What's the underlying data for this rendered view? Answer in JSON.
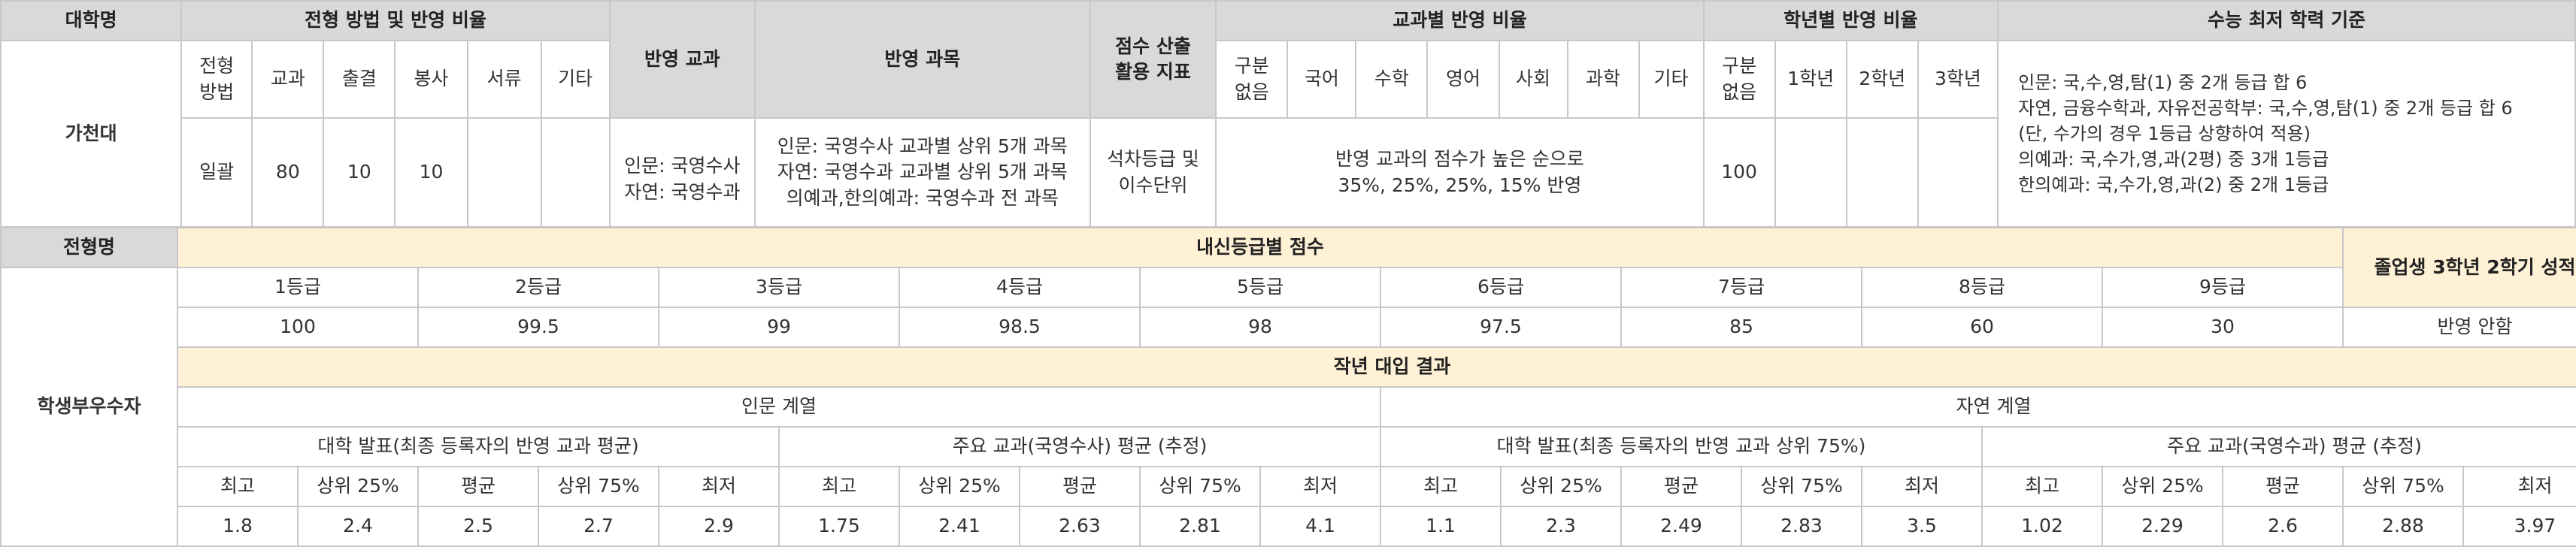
{
  "top": {
    "headers": {
      "univ": "대학명",
      "method_ratio": "전형 방법 및 반영 비율",
      "subject": "반영 교과",
      "course": "반영 과목",
      "score_index": "점수 산출\n활용 지표",
      "subject_ratio": "교과별 반영 비율",
      "grade_ratio": "학년별 반영 비율",
      "csat_min": "수능 최저 학력 기준"
    },
    "sub_headers": {
      "method": "전형\n방법",
      "gyogwa": "교과",
      "attendance": "출결",
      "volunteer": "봉사",
      "documents": "서류",
      "etc": "기타",
      "no_div": "구분\n없음",
      "korean": "국어",
      "math": "수학",
      "english": "영어",
      "social": "사회",
      "science": "과학",
      "etc2": "기타",
      "no_div2": "구분\n없음",
      "y1": "1학년",
      "y2": "2학년",
      "y3": "3학년"
    },
    "values": {
      "univ": "가천대",
      "method": "일괄",
      "gyogwa": "80",
      "attendance": "10",
      "volunteer": "10",
      "documents": "",
      "etc": "",
      "subject": "인문: 국영수사\n자연: 국영수과",
      "course": "인문: 국영수사 교과별 상위 5개 과목\n자연: 국영수과 교과별 상위 5개 과목\n의예과,한의예과: 국영수과 전 과목",
      "score_index": "석차등급 및\n이수단위",
      "subject_ratio_text": "반영 교과의 점수가 높은 순으로\n35%, 25%, 25%, 15% 반영",
      "grade_no_div": "100",
      "csat_min": "인문: 국,수,영,탐(1) 중 2개 등급 합 6\n자연, 금융수학과, 자유전공학부: 국,수,영,탐(1) 중 2개 등급 합 6\n(단, 수가의 경우 1등급 상향하여 적용)\n의예과: 국,수가,영,과(2평) 중 3개 1등급\n한의예과: 국,수가,영,과(2) 중 2개 1등급"
    }
  },
  "bottom": {
    "type_label": "전형명",
    "type_name": "학생부우수자",
    "grade_score_title": "내신등급별 점수",
    "graduate_title": "졸업생 3학년 2학기 성적",
    "grades": [
      "1등급",
      "2등급",
      "3등급",
      "4등급",
      "5등급",
      "6등급",
      "7등급",
      "8등급",
      "9등급"
    ],
    "grade_scores": [
      "100",
      "99.5",
      "99",
      "98.5",
      "98",
      "97.5",
      "85",
      "60",
      "30"
    ],
    "graduate_value": "반영 안함",
    "results_title": "작년 대입 결과",
    "humanities": "인문 계열",
    "natural": "자연 계열",
    "groups": [
      "대학 발표(최종 등록자의 반영 교과 평균)",
      "주요 교과(국영수사) 평균 (추정)",
      "대학 발표(최종 등록자의 반영 교과 상위 75%)",
      "주요 교과(국영수과) 평균 (추정)"
    ],
    "stat_labels": [
      "최고",
      "상위 25%",
      "평균",
      "상위 75%",
      "최저"
    ],
    "stats": [
      [
        "1.8",
        "2.4",
        "2.5",
        "2.7",
        "2.9"
      ],
      [
        "1.75",
        "2.41",
        "2.63",
        "2.81",
        "4.1"
      ],
      [
        "1.1",
        "2.3",
        "2.49",
        "2.83",
        "3.5"
      ],
      [
        "1.02",
        "2.29",
        "2.6",
        "2.88",
        "3.97"
      ]
    ]
  }
}
